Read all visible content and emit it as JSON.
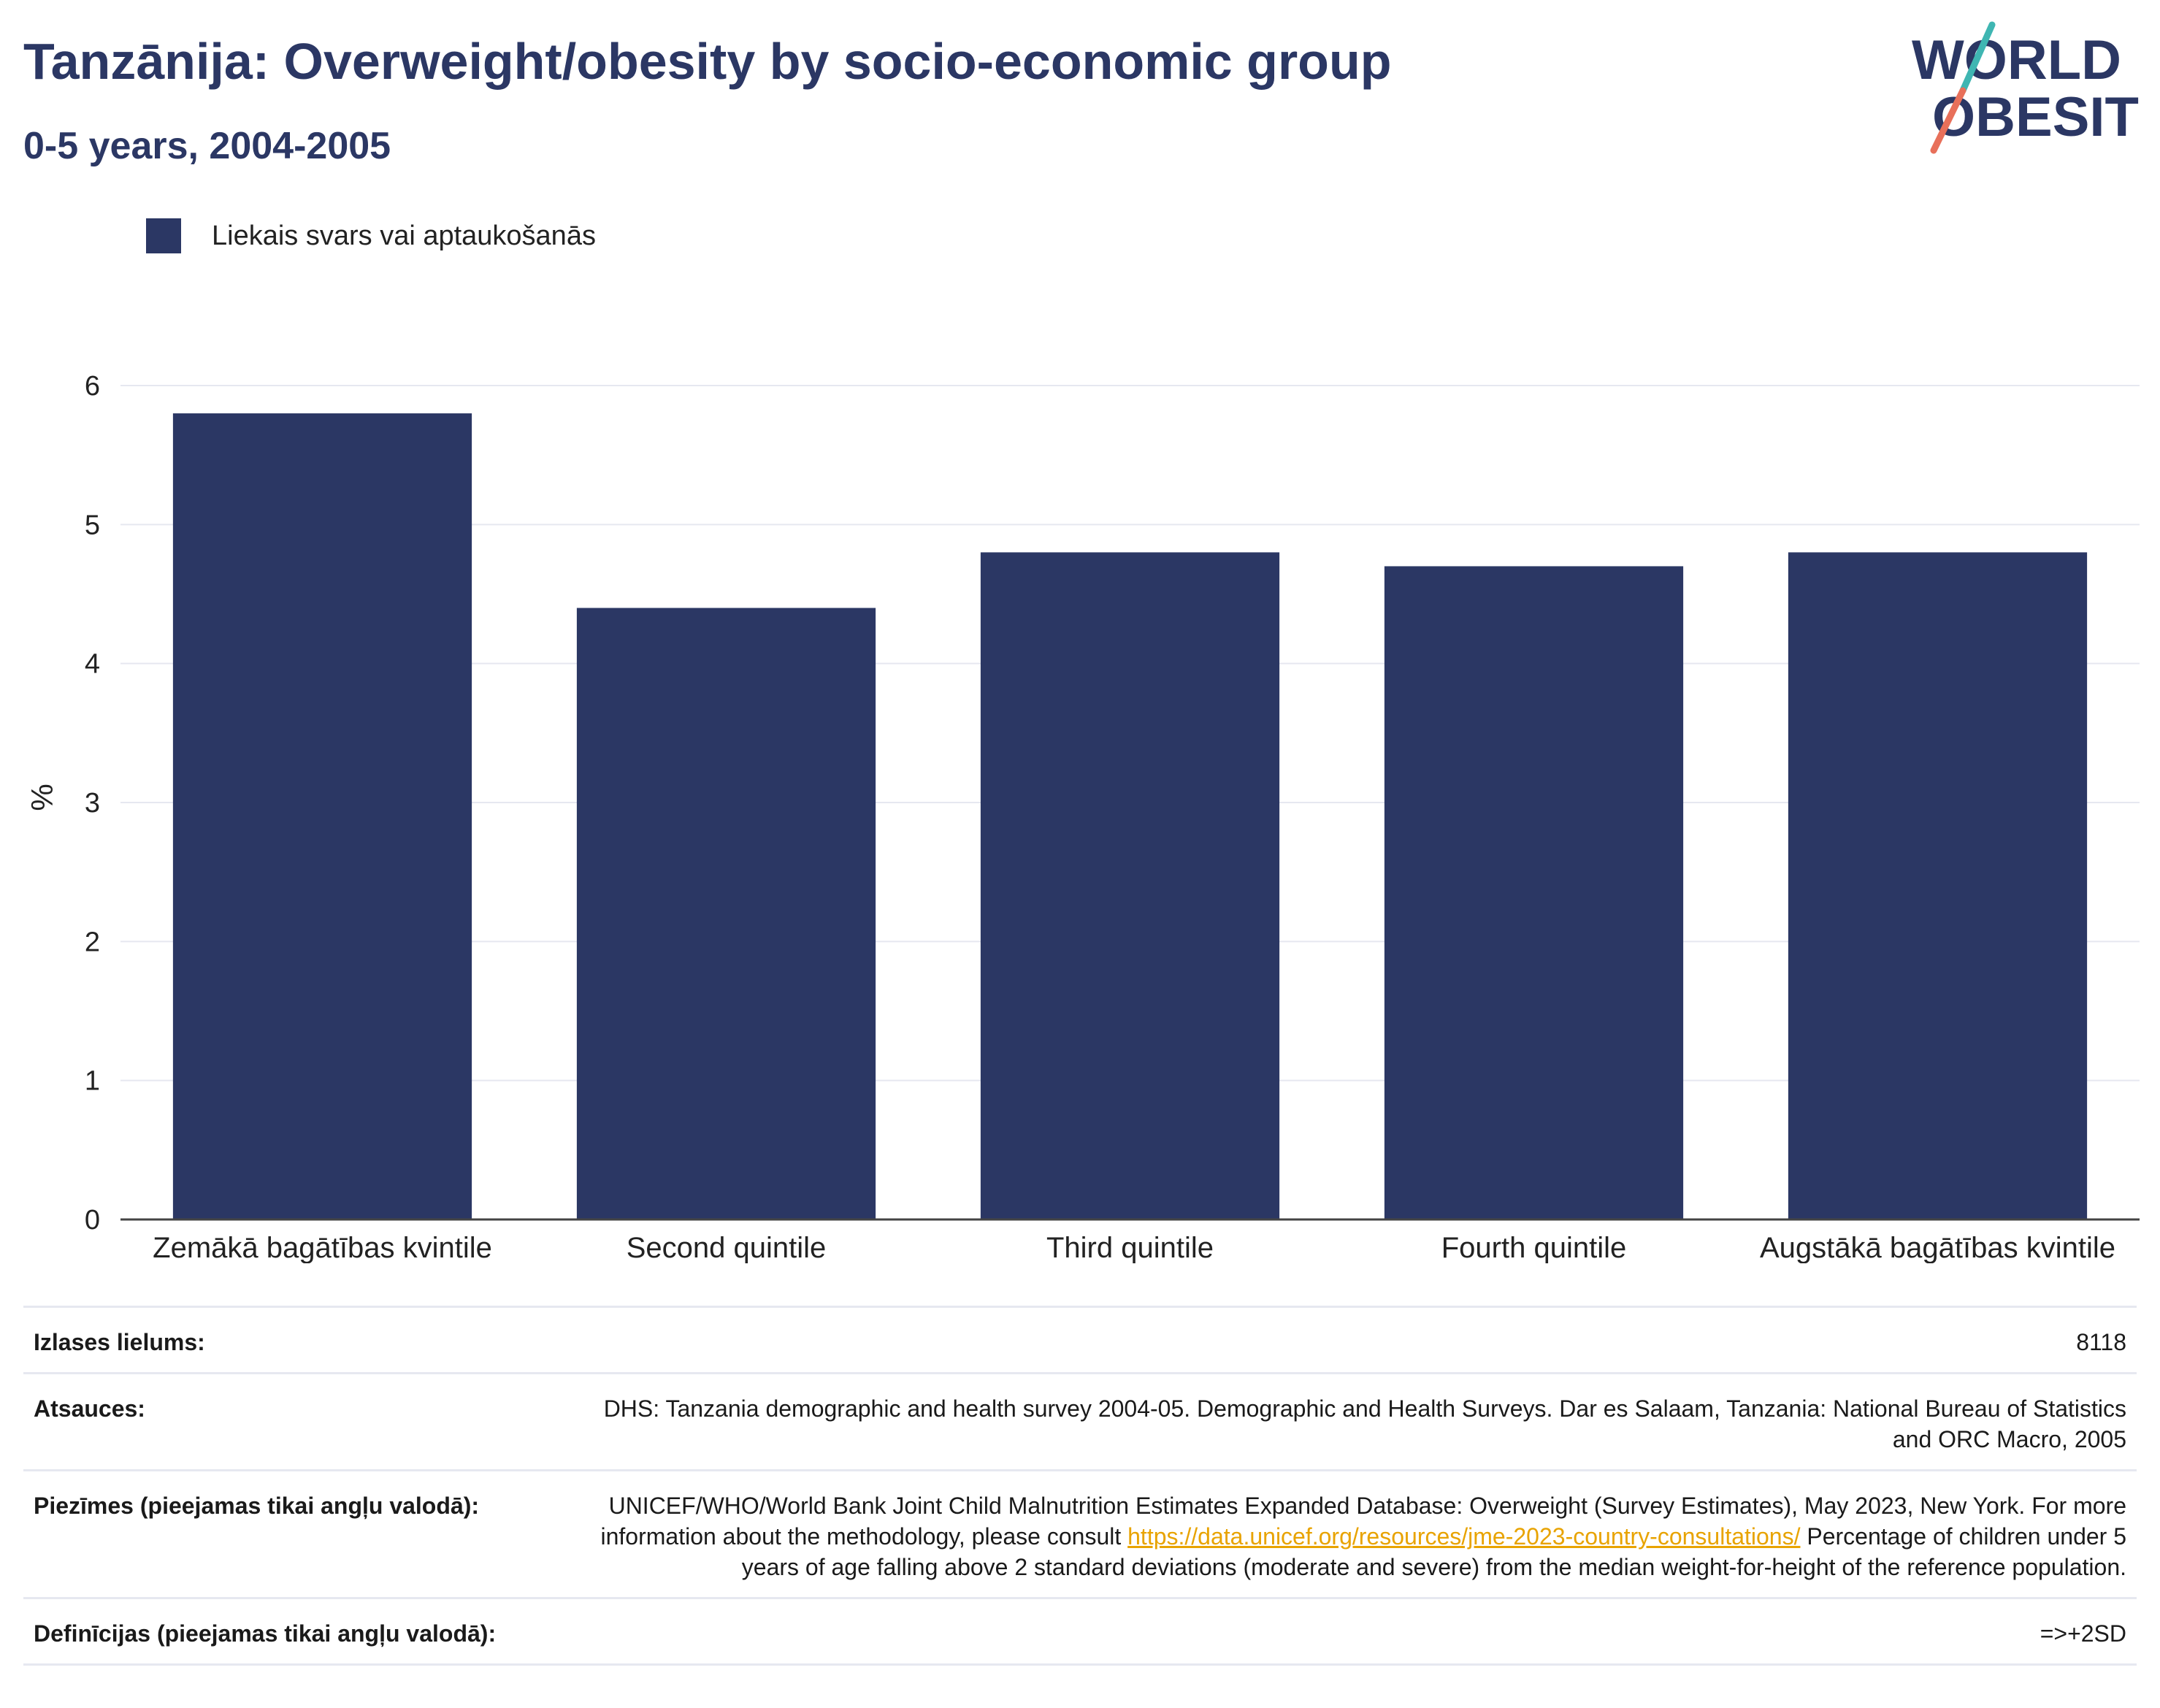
{
  "header": {
    "title": "Tanzānija: Overweight/obesity by socio-economic group",
    "subtitle": "0-5 years, 2004-2005"
  },
  "logo": {
    "line1": "WORLD",
    "line2": "OBESITY",
    "slash_colors": [
      "#3fb6b2",
      "#e8705a"
    ],
    "text_color": "#2b3764"
  },
  "colors": {
    "bar": "#2b3764",
    "grid": "#e6e8f0",
    "link": "#e8a300"
  },
  "chart_data": {
    "type": "bar",
    "title": "Tanzānija: Overweight/obesity by socio-economic group",
    "subtitle": "0-5 years, 2004-2005",
    "categories": [
      "Zemākā bagātības kvintile",
      "Second quintile",
      "Third quintile",
      "Fourth quintile",
      "Augstākā bagātības kvintile"
    ],
    "series": [
      {
        "name": "Liekais svars vai aptaukošanās",
        "values": [
          5.8,
          4.4,
          4.8,
          4.7,
          4.8
        ],
        "color": "#2b3764"
      }
    ],
    "xlabel": "",
    "ylabel": "%",
    "ylim": [
      0,
      6
    ],
    "yticks": [
      0,
      1,
      2,
      3,
      4,
      5,
      6
    ],
    "grid": true,
    "legend_position": "top-left"
  },
  "info": {
    "sample_label": "Izlases lielums:",
    "sample_value": "8118",
    "refs_label": "Atsauces:",
    "refs_value": "DHS: Tanzania demographic and health survey 2004-05. Demographic and Health Surveys. Dar es Salaam, Tanzania: National Bureau of Statistics and ORC Macro, 2005",
    "notes_label": "Piezīmes (pieejamas tikai angļu valodā):",
    "notes_text_1": "UNICEF/WHO/World Bank Joint Child Malnutrition Estimates Expanded Database: Overweight (Survey Estimates), May 2023, New York. For more information about the methodology, please consult ",
    "notes_link": "https://data.unicef.org/resources/jme-2023-country-consultations/",
    "notes_text_2": " Percentage of children under 5 years of age falling above 2 standard deviations (moderate and severe) from the median weight-for-height of the reference population.",
    "defs_label": "Definīcijas (pieejamas tikai angļu valodā):",
    "defs_value": "=>+2SD"
  }
}
